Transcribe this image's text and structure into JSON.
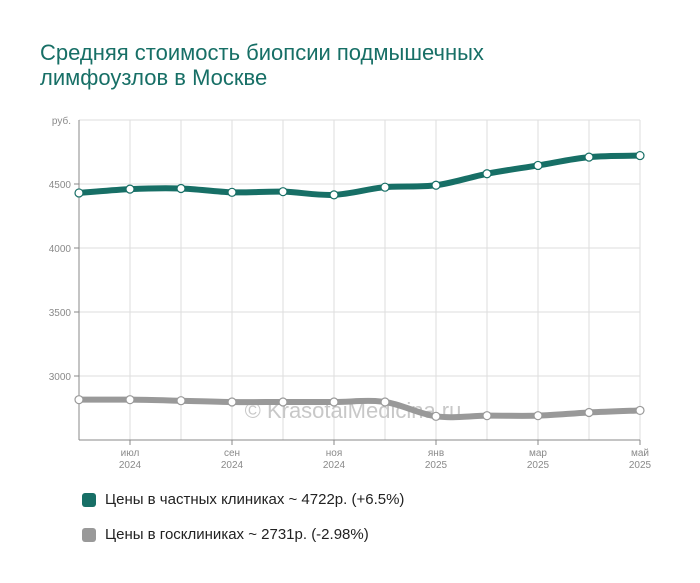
{
  "chart_data": {
    "type": "line",
    "title": "Средняя стоимость биопсии подмышечных лимфоузлов в Москве",
    "ylabel": "руб.",
    "ylim": [
      2500,
      5000
    ],
    "yticks": [
      3000,
      3500,
      4000,
      4500
    ],
    "grid": true,
    "watermark": "© KrasotaiMedicina.ru",
    "x": [
      "2024-06",
      "2024-07",
      "2024-08",
      "2024-09",
      "2024-10",
      "2024-11",
      "2024-12",
      "2025-01",
      "2025-02",
      "2025-03",
      "2025-04",
      "2025-05"
    ],
    "xticks": [
      {
        "month": "июл",
        "year": "2024"
      },
      {
        "month": "сен",
        "year": "2024"
      },
      {
        "month": "ноя",
        "year": "2024"
      },
      {
        "month": "янв",
        "year": "2025"
      },
      {
        "month": "мар",
        "year": "2025"
      },
      {
        "month": "май",
        "year": "2025"
      }
    ],
    "series": [
      {
        "name": "Цены в частных клиниках ~ 4722р. (+6.5%)",
        "color": "#176f66",
        "values": [
          4430,
          4460,
          4465,
          4435,
          4440,
          4415,
          4475,
          4490,
          4580,
          4645,
          4710,
          4722
        ]
      },
      {
        "name": "Цены в госклиниках ~ 2731р. (-2.98%)",
        "color": "#999999",
        "values": [
          2815,
          2815,
          2807,
          2797,
          2797,
          2797,
          2797,
          2685,
          2690,
          2690,
          2715,
          2731
        ]
      }
    ]
  }
}
